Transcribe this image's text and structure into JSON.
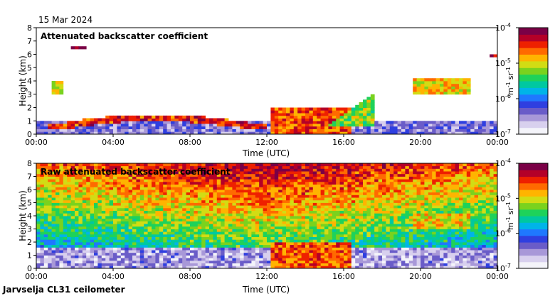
{
  "date_label": "15 Mar 2024",
  "footer_label": "Jarvselja CL31 ceilometer",
  "colorbar_colors": [
    "#f4f4fa",
    "#d8d0ee",
    "#a898d8",
    "#6a5cc8",
    "#2f3fe0",
    "#1f78ff",
    "#00b4e8",
    "#00c8a0",
    "#1ed25a",
    "#7ad21e",
    "#d2dc14",
    "#ffb400",
    "#ff6a00",
    "#ee2000",
    "#b40028",
    "#7a0046"
  ],
  "colorbar_ticks": [
    {
      "base": "10",
      "exp": "-4"
    },
    {
      "base": "10",
      "exp": "-5"
    },
    {
      "base": "10",
      "exp": "-6"
    },
    {
      "base": "10",
      "exp": "-7"
    }
  ],
  "colorbar_unit_m": "m",
  "colorbar_unit_m_exp": "-1",
  "colorbar_unit_sr": "sr",
  "colorbar_unit_sr_exp": "-1",
  "chart_data": [
    {
      "type": "heatmap",
      "title": "Attenuated backscatter coefficient",
      "xlabel": "Time (UTC)",
      "ylabel": "Height (km)",
      "x_ticks": [
        "00:00",
        "04:00",
        "08:00",
        "12:00",
        "16:00",
        "20:00",
        "00:00"
      ],
      "y_ticks": [
        0,
        1,
        2,
        3,
        4,
        5,
        6,
        7,
        8
      ],
      "ylim": [
        0,
        8
      ],
      "colorbar_range": [
        1e-07,
        0.0001
      ],
      "features": [
        {
          "kind": "surface_layer",
          "t0": 0,
          "t1": 24,
          "h0": 0,
          "h1": 0.8,
          "level": 0.2
        },
        {
          "kind": "boundary_layer_top",
          "t0": 0.5,
          "t1": 11.8,
          "h0": 0.3,
          "h1": 1.5,
          "level": 0.85
        },
        {
          "kind": "convective_layer",
          "t0": 12.0,
          "t1": 16.2,
          "h0": 0,
          "h1": 1.8,
          "level": 0.8
        },
        {
          "kind": "rising_layer",
          "t0": 15.0,
          "t1": 17.5,
          "h0": 0.5,
          "h1": 3.0,
          "level": 0.6
        },
        {
          "kind": "elevated_layer",
          "t0": 0.7,
          "t1": 1.3,
          "h0": 2.9,
          "h1": 4.0,
          "level": 0.65
        },
        {
          "kind": "elevated_layer",
          "t0": 19.5,
          "t1": 22.5,
          "h0": 3.0,
          "h1": 4.2,
          "level": 0.7
        },
        {
          "kind": "cloud",
          "t0": 1.6,
          "t1": 2.5,
          "h0": 6.3,
          "h1": 6.6,
          "level": 0.95
        },
        {
          "kind": "cloud",
          "t0": 23.4,
          "t1": 24,
          "h0": 5.7,
          "h1": 6.0,
          "level": 0.95
        }
      ]
    },
    {
      "type": "heatmap",
      "title": "Raw attenuated backscatter coefficient",
      "xlabel": "Time (UTC)",
      "ylabel": "Height (km)",
      "x_ticks": [
        "00:00",
        "04:00",
        "08:00",
        "12:00",
        "16:00",
        "20:00",
        "00:00"
      ],
      "y_ticks": [
        0,
        1,
        2,
        3,
        4,
        5,
        6,
        7,
        8
      ],
      "ylim": [
        0,
        8
      ],
      "colorbar_range": [
        1e-07,
        0.0001
      ],
      "features": [
        {
          "kind": "noise_gradient",
          "t0": 0,
          "t1": 24,
          "h0": 0,
          "h1": 8,
          "level": 0.55
        },
        {
          "kind": "surface_layer",
          "t0": 0,
          "t1": 24,
          "h0": 0,
          "h1": 1.4,
          "level": 0.15
        },
        {
          "kind": "convective_layer",
          "t0": 12.0,
          "t1": 16.2,
          "h0": 0,
          "h1": 1.8,
          "level": 0.8
        },
        {
          "kind": "elevated_layer",
          "t0": 19.5,
          "t1": 22.5,
          "h0": 3.0,
          "h1": 4.2,
          "level": 0.7
        }
      ]
    }
  ]
}
